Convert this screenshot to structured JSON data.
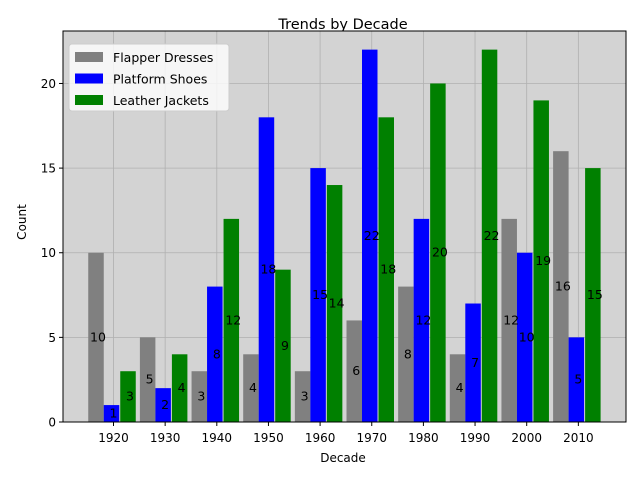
{
  "chart_data": {
    "type": "bar",
    "title": "Trends by Decade",
    "xlabel": "Decade",
    "ylabel": "Count",
    "categories": [
      "1920",
      "1930",
      "1940",
      "1950",
      "1960",
      "1970",
      "1980",
      "1990",
      "2000",
      "2010"
    ],
    "series": [
      {
        "name": "Flapper Dresses",
        "color": "#808080",
        "values": [
          10,
          5,
          3,
          4,
          3,
          6,
          8,
          4,
          12,
          16
        ]
      },
      {
        "name": "Platform Shoes",
        "color": "#0000ff",
        "values": [
          1,
          2,
          8,
          18,
          15,
          22,
          12,
          7,
          10,
          5
        ]
      },
      {
        "name": "Leather Jackets",
        "color": "#008000",
        "values": [
          3,
          4,
          12,
          9,
          14,
          18,
          20,
          22,
          19,
          15
        ]
      }
    ],
    "ylim": [
      0,
      23.1
    ],
    "yticks": [
      0,
      5,
      10,
      15,
      20
    ],
    "grid": true,
    "legend_position": "top-left",
    "plot_background": "#d3d3d3"
  }
}
